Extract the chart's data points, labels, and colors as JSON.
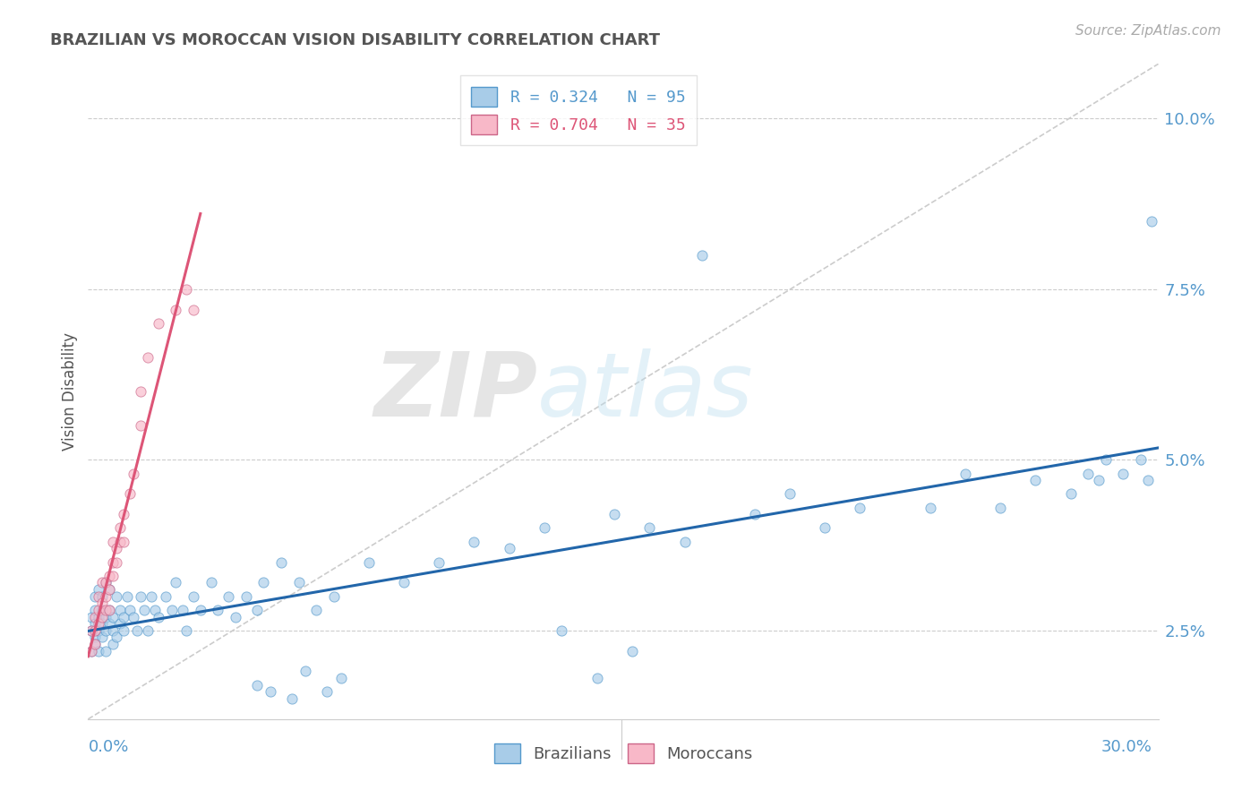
{
  "title": "BRAZILIAN VS MOROCCAN VISION DISABILITY CORRELATION CHART",
  "source": "Source: ZipAtlas.com",
  "ylabel": "Vision Disability",
  "xlim": [
    0.0,
    0.305
  ],
  "ylim": [
    0.012,
    0.108
  ],
  "yticks": [
    0.025,
    0.05,
    0.075,
    0.1
  ],
  "ytick_labels": [
    "2.5%",
    "5.0%",
    "7.5%",
    "10.0%"
  ],
  "bg_color": "#ffffff",
  "brazil_color": "#a8cce8",
  "brazil_edge": "#5599cc",
  "brazil_line_color": "#2266aa",
  "morocco_color": "#f8b8c8",
  "morocco_edge": "#cc6688",
  "morocco_line_color": "#dd5577",
  "axis_tick_color": "#5599cc",
  "title_color": "#555555",
  "grid_color": "#cccccc",
  "ref_line_color": "#cccccc",
  "watermark_zip": "ZIP",
  "watermark_atlas": "atlas",
  "legend1_label0": "R = 0.324   N = 95",
  "legend1_label1": "R = 0.704   N = 35",
  "legend1_color0": "#5599cc",
  "legend1_color1": "#dd5577",
  "legend2_label0": "Brazilians",
  "legend2_label1": "Moroccans",
  "brazil_x": [
    0.001,
    0.001,
    0.001,
    0.002,
    0.002,
    0.002,
    0.002,
    0.002,
    0.003,
    0.003,
    0.003,
    0.003,
    0.004,
    0.004,
    0.004,
    0.004,
    0.005,
    0.005,
    0.005,
    0.005,
    0.006,
    0.006,
    0.006,
    0.007,
    0.007,
    0.007,
    0.008,
    0.008,
    0.009,
    0.009,
    0.01,
    0.01,
    0.011,
    0.012,
    0.013,
    0.014,
    0.015,
    0.016,
    0.017,
    0.018,
    0.019,
    0.02,
    0.022,
    0.024,
    0.025,
    0.027,
    0.028,
    0.03,
    0.032,
    0.035,
    0.037,
    0.04,
    0.042,
    0.045,
    0.048,
    0.05,
    0.055,
    0.06,
    0.065,
    0.07,
    0.08,
    0.09,
    0.1,
    0.11,
    0.12,
    0.13,
    0.15,
    0.16,
    0.17,
    0.19,
    0.2,
    0.21,
    0.22,
    0.24,
    0.25,
    0.26,
    0.27,
    0.28,
    0.285,
    0.29,
    0.295,
    0.3,
    0.302,
    0.303,
    0.288,
    0.175,
    0.155,
    0.145,
    0.135,
    0.048,
    0.052,
    0.058,
    0.062,
    0.068,
    0.072
  ],
  "brazil_y": [
    0.025,
    0.027,
    0.022,
    0.026,
    0.028,
    0.024,
    0.03,
    0.023,
    0.027,
    0.025,
    0.031,
    0.022,
    0.028,
    0.026,
    0.03,
    0.024,
    0.027,
    0.025,
    0.032,
    0.022,
    0.028,
    0.026,
    0.031,
    0.027,
    0.025,
    0.023,
    0.03,
    0.024,
    0.028,
    0.026,
    0.027,
    0.025,
    0.03,
    0.028,
    0.027,
    0.025,
    0.03,
    0.028,
    0.025,
    0.03,
    0.028,
    0.027,
    0.03,
    0.028,
    0.032,
    0.028,
    0.025,
    0.03,
    0.028,
    0.032,
    0.028,
    0.03,
    0.027,
    0.03,
    0.028,
    0.032,
    0.035,
    0.032,
    0.028,
    0.03,
    0.035,
    0.032,
    0.035,
    0.038,
    0.037,
    0.04,
    0.042,
    0.04,
    0.038,
    0.042,
    0.045,
    0.04,
    0.043,
    0.043,
    0.048,
    0.043,
    0.047,
    0.045,
    0.048,
    0.05,
    0.048,
    0.05,
    0.047,
    0.085,
    0.047,
    0.08,
    0.022,
    0.018,
    0.025,
    0.017,
    0.016,
    0.015,
    0.019,
    0.016,
    0.018
  ],
  "morocco_x": [
    0.001,
    0.001,
    0.002,
    0.002,
    0.002,
    0.003,
    0.003,
    0.003,
    0.004,
    0.004,
    0.004,
    0.005,
    0.005,
    0.005,
    0.006,
    0.006,
    0.006,
    0.007,
    0.007,
    0.007,
    0.008,
    0.008,
    0.009,
    0.009,
    0.01,
    0.01,
    0.012,
    0.013,
    0.015,
    0.015,
    0.017,
    0.02,
    0.025,
    0.028,
    0.03
  ],
  "morocco_y": [
    0.025,
    0.022,
    0.027,
    0.025,
    0.023,
    0.028,
    0.026,
    0.03,
    0.029,
    0.032,
    0.027,
    0.03,
    0.028,
    0.032,
    0.033,
    0.031,
    0.028,
    0.035,
    0.033,
    0.038,
    0.037,
    0.035,
    0.038,
    0.04,
    0.042,
    0.038,
    0.045,
    0.048,
    0.06,
    0.055,
    0.065,
    0.07,
    0.072,
    0.075,
    0.072
  ]
}
